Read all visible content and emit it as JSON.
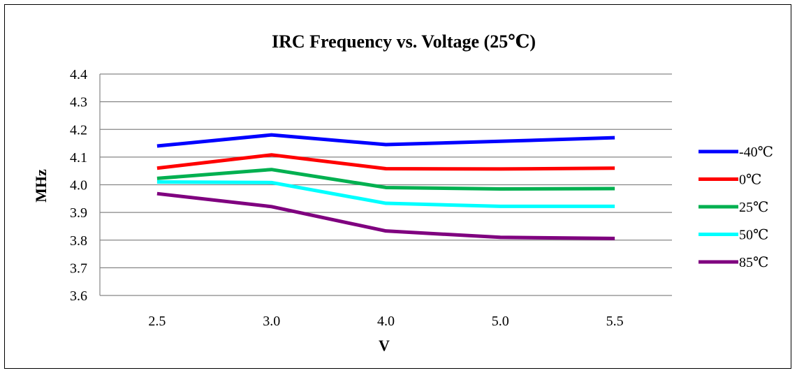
{
  "chart_data": {
    "type": "line",
    "title": "IRC Frequency vs. Voltage (25℃)",
    "xlabel": "V",
    "ylabel": "MHz",
    "categories": [
      "2.5",
      "3.0",
      "4.0",
      "5.0",
      "5.5"
    ],
    "ylim": [
      3.6,
      4.4
    ],
    "yticks": [
      "3.6",
      "3.7",
      "3.8",
      "3.9",
      "4.0",
      "4.1",
      "4.2",
      "4.3",
      "4.4"
    ],
    "grid": true,
    "legend_position": "right",
    "series": [
      {
        "name": "-40℃",
        "color": "#0000ff",
        "values": [
          4.14,
          4.18,
          4.145,
          4.157,
          4.17
        ]
      },
      {
        "name": "0℃",
        "color": "#ff0000",
        "values": [
          4.06,
          4.108,
          4.058,
          4.057,
          4.06
        ]
      },
      {
        "name": "25℃",
        "color": "#00b050",
        "values": [
          4.023,
          4.055,
          3.99,
          3.985,
          3.986
        ]
      },
      {
        "name": "50℃",
        "color": "#00ffff",
        "values": [
          4.01,
          4.008,
          3.933,
          3.922,
          3.922
        ]
      },
      {
        "name": "85℃",
        "color": "#7f007f",
        "values": [
          3.968,
          3.921,
          3.833,
          3.81,
          3.806
        ]
      }
    ]
  }
}
